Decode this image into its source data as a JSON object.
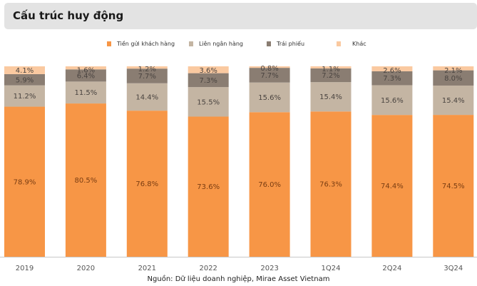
{
  "header": {
    "title": "Cấu trúc huy động"
  },
  "source": "Nguồn: Dữ liệu doanh nghiệp, Mirae Asset Vietnam",
  "chart_data": {
    "type": "bar",
    "stacked": true,
    "title": "Cấu trúc huy động",
    "xlabel": "",
    "ylabel": "",
    "ylim": [
      0,
      100
    ],
    "grid": false,
    "legend_position": "top-center",
    "categories": [
      "2019",
      "2020",
      "2021",
      "2022",
      "2023",
      "1Q24",
      "2Q24",
      "3Q24"
    ],
    "series": [
      {
        "name": "Tiền gửi khách hàng",
        "color": "#f79646",
        "values": [
          78.9,
          80.5,
          76.8,
          73.6,
          76.0,
          76.3,
          74.4,
          74.5
        ],
        "labels": [
          "78.9%",
          "80.5%",
          "76.8%",
          "73.6%",
          "76.0%",
          "76.3%",
          "74.4%",
          "74.5%"
        ]
      },
      {
        "name": "Liên ngân hàng",
        "color": "#c4b5a3",
        "values": [
          11.2,
          11.5,
          14.4,
          15.5,
          15.6,
          15.4,
          15.6,
          15.4
        ],
        "labels": [
          "11.2%",
          "11.5%",
          "14.4%",
          "15.5%",
          "15.6%",
          "15.4%",
          "15.6%",
          "15.4%"
        ]
      },
      {
        "name": "Trái phiếu",
        "color": "#8a7d72",
        "values": [
          5.9,
          6.4,
          7.7,
          7.3,
          7.7,
          7.2,
          7.3,
          8.0
        ],
        "labels": [
          "5.9%",
          "6.4%",
          "7.7%",
          "7.3%",
          "7.7%",
          "7.2%",
          "7.3%",
          "8.0%"
        ]
      },
      {
        "name": "Khác",
        "color": "#fac9a0",
        "values": [
          4.1,
          1.6,
          1.2,
          3.6,
          0.8,
          1.1,
          2.6,
          2.1
        ],
        "labels": [
          "4.1%",
          "1.6%",
          "1.2%",
          "3.6%",
          "0.8%",
          "1.1%",
          "2.6%",
          "2.1%"
        ]
      }
    ]
  }
}
